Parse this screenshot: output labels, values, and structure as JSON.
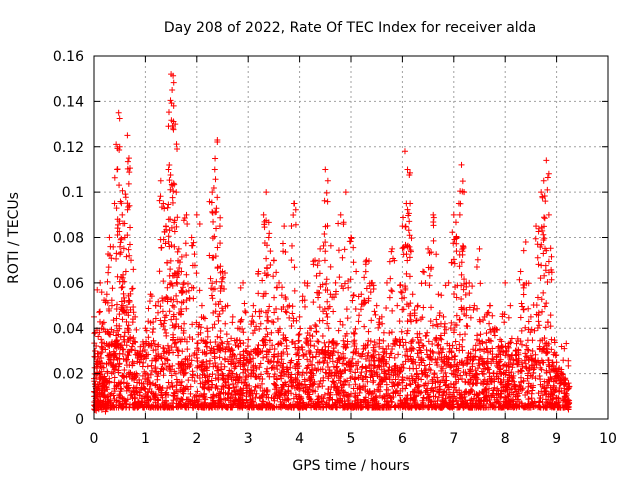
{
  "chart_data": {
    "type": "scatter",
    "title": "Day 208 of 2022, Rate Of TEC Index for receiver alda",
    "xlabel": "GPS time / hours",
    "ylabel": "ROTI / TECUs",
    "xlim": [
      0,
      10
    ],
    "ylim": [
      0,
      0.16
    ],
    "xticks": [
      "0",
      "1",
      "2",
      "3",
      "4",
      "5",
      "6",
      "7",
      "8",
      "9",
      "10"
    ],
    "yticks": [
      "0",
      "0.02",
      "0.04",
      "0.06",
      "0.08",
      "0.1",
      "0.12",
      "0.14",
      "0.16"
    ],
    "grid": true,
    "marker": "plus",
    "color": "#ff0000",
    "series": [
      {
        "points": [
          [
            0.0,
            0.045
          ],
          [
            0.02,
            0.03
          ],
          [
            0.05,
            0.01
          ],
          [
            0.08,
            0.025
          ],
          [
            0.12,
            0.06
          ],
          [
            0.15,
            0.04
          ],
          [
            0.2,
            0.015
          ],
          [
            0.25,
            0.055
          ],
          [
            0.3,
            0.08
          ],
          [
            0.35,
            0.05
          ],
          [
            0.4,
            0.095
          ],
          [
            0.45,
            0.11
          ],
          [
            0.48,
            0.135
          ],
          [
            0.5,
            0.12
          ],
          [
            0.55,
            0.09
          ],
          [
            0.6,
            0.08
          ],
          [
            0.62,
            0.065
          ],
          [
            0.65,
            0.125
          ],
          [
            0.68,
            0.115
          ],
          [
            0.72,
            0.07
          ],
          [
            0.8,
            0.045
          ],
          [
            0.9,
            0.03
          ],
          [
            1.0,
            0.04
          ],
          [
            1.1,
            0.055
          ],
          [
            1.2,
            0.05
          ],
          [
            1.3,
            0.105
          ],
          [
            1.35,
            0.095
          ],
          [
            1.4,
            0.085
          ],
          [
            1.45,
            0.11
          ],
          [
            1.5,
            0.152
          ],
          [
            1.52,
            0.145
          ],
          [
            1.55,
            0.138
          ],
          [
            1.58,
            0.13
          ],
          [
            1.6,
            0.1
          ],
          [
            1.65,
            0.075
          ],
          [
            1.7,
            0.065
          ],
          [
            1.75,
            0.06
          ],
          [
            1.8,
            0.09
          ],
          [
            1.9,
            0.08
          ],
          [
            2.0,
            0.09
          ],
          [
            2.1,
            0.05
          ],
          [
            2.2,
            0.04
          ],
          [
            2.3,
            0.1
          ],
          [
            2.35,
            0.11
          ],
          [
            2.4,
            0.123
          ],
          [
            2.45,
            0.085
          ],
          [
            2.5,
            0.065
          ],
          [
            2.6,
            0.05
          ],
          [
            2.7,
            0.045
          ],
          [
            2.8,
            0.04
          ],
          [
            2.9,
            0.06
          ],
          [
            3.0,
            0.035
          ],
          [
            3.1,
            0.05
          ],
          [
            3.2,
            0.065
          ],
          [
            3.3,
            0.09
          ],
          [
            3.35,
            0.1
          ],
          [
            3.4,
            0.08
          ],
          [
            3.5,
            0.07
          ],
          [
            3.6,
            0.06
          ],
          [
            3.7,
            0.085
          ],
          [
            3.8,
            0.05
          ],
          [
            3.9,
            0.095
          ],
          [
            4.0,
            0.045
          ],
          [
            4.1,
            0.06
          ],
          [
            4.2,
            0.04
          ],
          [
            4.3,
            0.07
          ],
          [
            4.4,
            0.075
          ],
          [
            4.5,
            0.11
          ],
          [
            4.55,
            0.105
          ],
          [
            4.6,
            0.055
          ],
          [
            4.7,
            0.06
          ],
          [
            4.8,
            0.09
          ],
          [
            4.9,
            0.1
          ],
          [
            5.0,
            0.08
          ],
          [
            5.1,
            0.065
          ],
          [
            5.2,
            0.055
          ],
          [
            5.3,
            0.07
          ],
          [
            5.4,
            0.06
          ],
          [
            5.5,
            0.05
          ],
          [
            5.6,
            0.045
          ],
          [
            5.7,
            0.06
          ],
          [
            5.8,
            0.075
          ],
          [
            5.9,
            0.05
          ],
          [
            6.0,
            0.085
          ],
          [
            6.05,
            0.118
          ],
          [
            6.1,
            0.11
          ],
          [
            6.15,
            0.095
          ],
          [
            6.2,
            0.055
          ],
          [
            6.3,
            0.05
          ],
          [
            6.4,
            0.065
          ],
          [
            6.5,
            0.075
          ],
          [
            6.6,
            0.09
          ],
          [
            6.7,
            0.055
          ],
          [
            6.8,
            0.045
          ],
          [
            6.9,
            0.06
          ],
          [
            7.0,
            0.09
          ],
          [
            7.05,
            0.08
          ],
          [
            7.1,
            0.095
          ],
          [
            7.15,
            0.112
          ],
          [
            7.2,
            0.1
          ],
          [
            7.3,
            0.06
          ],
          [
            7.4,
            0.05
          ],
          [
            7.5,
            0.075
          ],
          [
            7.6,
            0.045
          ],
          [
            7.7,
            0.05
          ],
          [
            7.8,
            0.04
          ],
          [
            7.9,
            0.035
          ],
          [
            8.0,
            0.06
          ],
          [
            8.1,
            0.05
          ],
          [
            8.2,
            0.03
          ],
          [
            8.3,
            0.065
          ],
          [
            8.4,
            0.078
          ],
          [
            8.5,
            0.045
          ],
          [
            8.6,
            0.085
          ],
          [
            8.7,
            0.1
          ],
          [
            8.75,
            0.105
          ],
          [
            8.8,
            0.114
          ],
          [
            8.85,
            0.09
          ],
          [
            8.9,
            0.035
          ],
          [
            9.0,
            0.025
          ],
          [
            9.1,
            0.02
          ],
          [
            9.2,
            0.015
          ]
        ]
      }
    ]
  }
}
